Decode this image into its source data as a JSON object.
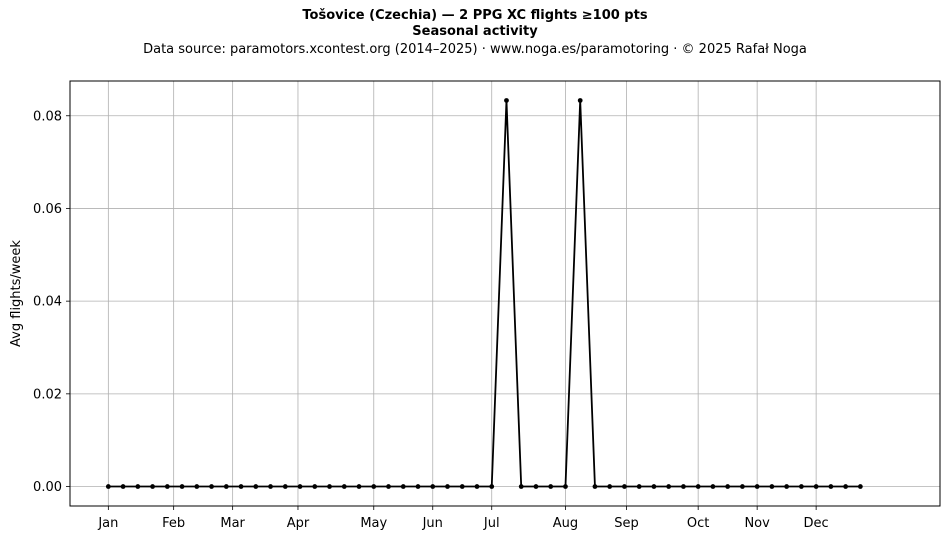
{
  "chart_data": {
    "type": "line",
    "title": "Tošovice (Czechia)  —  2 PPG XC flights ≥100 pts",
    "subtitle": "Seasonal activity",
    "source": "Data source: paramotors.xcontest.org (2014–2025)  ·  www.noga.es/paramotoring  ·  © 2025 Rafał Noga",
    "xlabel": "",
    "ylabel": "Avg flights/week",
    "x_ticks": [
      {
        "label": "Jan",
        "week": 1
      },
      {
        "label": "Feb",
        "week": 5.43
      },
      {
        "label": "Mar",
        "week": 9.43
      },
      {
        "label": "Apr",
        "week": 13.86
      },
      {
        "label": "May",
        "week": 19
      },
      {
        "label": "Jun",
        "week": 23
      },
      {
        "label": "Jul",
        "week": 27
      },
      {
        "label": "Aug",
        "week": 32
      },
      {
        "label": "Sep",
        "week": 36.14
      },
      {
        "label": "Oct",
        "week": 41
      },
      {
        "label": "Nov",
        "week": 45
      },
      {
        "label": "Dec",
        "week": 49
      }
    ],
    "y_ticks": [
      "0.00",
      "0.02",
      "0.04",
      "0.06",
      "0.08"
    ],
    "xlim": [
      -1.6,
      57.4
    ],
    "ylim": [
      -0.0042,
      0.0875
    ],
    "grid": true,
    "legend": "none",
    "line_color": "#000000",
    "grid_color": "#b0b0b0",
    "x": [
      1,
      2,
      3,
      4,
      5,
      6,
      7,
      8,
      9,
      10,
      11,
      12,
      13,
      14,
      15,
      16,
      17,
      18,
      19,
      20,
      21,
      22,
      23,
      24,
      25,
      26,
      27,
      28,
      29,
      30,
      31,
      32,
      33,
      34,
      35,
      36,
      37,
      38,
      39,
      40,
      41,
      42,
      43,
      44,
      45,
      46,
      47,
      48,
      49,
      50,
      51,
      52
    ],
    "values": [
      0,
      0,
      0,
      0,
      0,
      0,
      0,
      0,
      0,
      0,
      0,
      0,
      0,
      0,
      0,
      0,
      0,
      0,
      0,
      0,
      0,
      0,
      0,
      0,
      0,
      0,
      0,
      0.0833,
      0,
      0,
      0,
      0,
      0.0833,
      0,
      0,
      0,
      0,
      0,
      0,
      0,
      0,
      0,
      0,
      0,
      0,
      0,
      0,
      0,
      0,
      0,
      0,
      0
    ]
  }
}
